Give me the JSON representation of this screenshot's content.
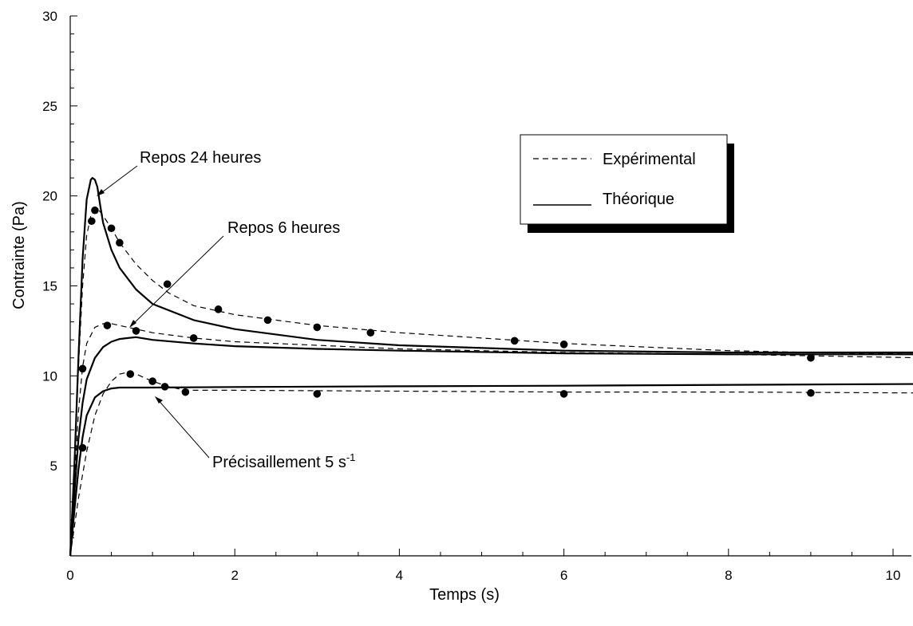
{
  "chart_data": {
    "type": "line",
    "xlabel": "Temps (s)",
    "ylabel": "Contrainte (Pa)",
    "xlim": [
      0,
      10
    ],
    "ylim": [
      0,
      30
    ],
    "x_ticks": [
      "0",
      "2",
      "4",
      "6",
      "8",
      "10"
    ],
    "y_ticks": [
      "5",
      "10",
      "15",
      "20",
      "25",
      "30"
    ],
    "grid": false,
    "legend": {
      "placement": "top-right",
      "items": [
        {
          "label": "Expérimental",
          "style": "dashed"
        },
        {
          "label": "Théorique",
          "style": "solid"
        }
      ]
    },
    "annotations": [
      {
        "text": "Repos 24 heures",
        "points_to": [
          0.32,
          20.5
        ]
      },
      {
        "text": "Repos 6 heures",
        "points_to": [
          0.75,
          12.2
        ]
      },
      {
        "text": "Précisaillement 5 s",
        "superscript": "-1",
        "points_to": [
          1.05,
          9.4
        ]
      }
    ],
    "series": [
      {
        "style": "dashed",
        "x": [
          0,
          0.05,
          0.1,
          0.15,
          0.2,
          0.25,
          0.3,
          0.35,
          0.4,
          0.5,
          0.6,
          0.8,
          1.0,
          1.2,
          1.5,
          2.0,
          2.5,
          3.0,
          4.0,
          5.0,
          6.0,
          7.0,
          8.0,
          9.0,
          10.4
        ],
        "y": [
          0,
          5,
          10.5,
          15,
          17.8,
          18.9,
          19.3,
          19.2,
          18.9,
          18.2,
          17.4,
          16.2,
          15.3,
          14.6,
          13.9,
          13.4,
          13.1,
          12.8,
          12.4,
          12.1,
          11.8,
          11.6,
          11.4,
          11.3,
          11.2
        ]
      },
      {
        "style": "dashed",
        "x": [
          0,
          0.05,
          0.1,
          0.15,
          0.2,
          0.3,
          0.4,
          0.5,
          0.8,
          1.0,
          1.5,
          2.0,
          3.0,
          4.0,
          6.0,
          8.0,
          10.4
        ],
        "y": [
          0,
          4,
          8,
          10.5,
          11.8,
          12.7,
          12.9,
          12.9,
          12.6,
          12.4,
          12.1,
          11.9,
          11.7,
          11.5,
          11.3,
          11.2,
          11.0
        ]
      },
      {
        "style": "dashed",
        "x": [
          0,
          0.1,
          0.2,
          0.3,
          0.4,
          0.5,
          0.6,
          0.7,
          0.8,
          1.0,
          1.2,
          1.4,
          2.0,
          4.0,
          6.0,
          8.0,
          10.4
        ],
        "y": [
          0,
          3.2,
          5.8,
          7.8,
          9.0,
          9.7,
          10.1,
          10.2,
          10.1,
          9.7,
          9.4,
          9.2,
          9.2,
          9.15,
          9.1,
          9.1,
          9.05
        ]
      },
      {
        "style": "solid",
        "x": [
          0,
          0.05,
          0.1,
          0.15,
          0.2,
          0.25,
          0.27,
          0.3,
          0.33,
          0.36,
          0.4,
          0.5,
          0.6,
          0.8,
          1.0,
          1.5,
          2.0,
          3.0,
          4.0,
          6.0,
          8.0,
          10.4
        ],
        "y": [
          0,
          5,
          11,
          16.5,
          19.8,
          20.9,
          21.0,
          20.9,
          20.5,
          19.6,
          18.5,
          17.0,
          16.0,
          14.8,
          14.0,
          13.1,
          12.6,
          12.0,
          11.7,
          11.4,
          11.3,
          11.3
        ]
      },
      {
        "style": "solid",
        "x": [
          0,
          0.05,
          0.1,
          0.15,
          0.2,
          0.3,
          0.4,
          0.5,
          0.6,
          0.7,
          0.8,
          1.0,
          1.5,
          2.0,
          3.0,
          4.0,
          6.0,
          8.0,
          10.4
        ],
        "y": [
          0,
          3.5,
          6.5,
          8.5,
          9.8,
          11.0,
          11.6,
          11.9,
          12.05,
          12.1,
          12.15,
          12.0,
          11.8,
          11.65,
          11.5,
          11.4,
          11.25,
          11.2,
          11.2
        ]
      },
      {
        "style": "solid",
        "x": [
          0,
          0.05,
          0.1,
          0.15,
          0.2,
          0.3,
          0.4,
          0.5,
          0.6,
          0.7,
          0.8,
          1.0,
          2.0,
          4.0,
          6.0,
          8.0,
          10.4
        ],
        "y": [
          0,
          2.5,
          4.8,
          6.6,
          7.8,
          8.8,
          9.15,
          9.3,
          9.35,
          9.35,
          9.35,
          9.35,
          9.38,
          9.42,
          9.45,
          9.5,
          9.55
        ]
      },
      {
        "style": "markers",
        "x": [
          0.15,
          0.26,
          0.3,
          0.5,
          0.6,
          1.18,
          1.8,
          2.4,
          3.0,
          3.65,
          5.4,
          6.0,
          9.0
        ],
        "y": [
          10.4,
          18.6,
          19.2,
          18.2,
          17.4,
          15.1,
          13.7,
          13.1,
          12.7,
          12.4,
          11.95,
          11.75,
          11.0
        ]
      },
      {
        "style": "markers",
        "x": [
          0.45,
          0.8,
          1.5
        ],
        "y": [
          12.8,
          12.5,
          12.1
        ]
      },
      {
        "style": "markers",
        "x": [
          0.15,
          0.73,
          1.0,
          1.15,
          1.4,
          3.0,
          6.0,
          9.0
        ],
        "y": [
          6.0,
          10.1,
          9.7,
          9.4,
          9.1,
          9.0,
          9.0,
          9.05
        ]
      }
    ]
  }
}
